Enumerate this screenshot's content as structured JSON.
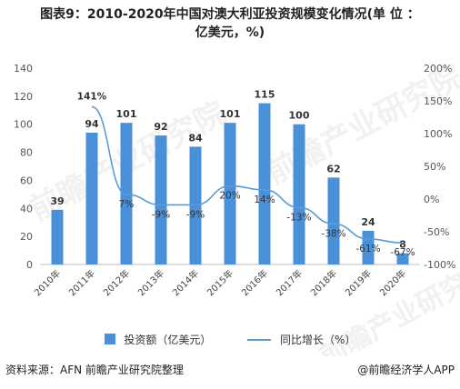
{
  "title_line1": "图表9：2010-2020年中国对澳大利亚投资规模变化情况(单 位 ：",
  "title_line2": "亿美元，%)",
  "chart_data": {
    "type": "bar",
    "categories": [
      "2010年",
      "2011年",
      "2012年",
      "2013年",
      "2014年",
      "2015年",
      "2016年",
      "2017年",
      "2018年",
      "2019年",
      "2020年"
    ],
    "series": [
      {
        "name": "投资额（亿美元）",
        "type": "bar",
        "values": [
          39,
          94,
          101,
          92,
          84,
          101,
          115,
          100,
          62,
          24,
          8
        ],
        "color": "#4a90d9"
      },
      {
        "name": "同比增长（%）",
        "type": "line",
        "values": [
          null,
          141,
          7,
          -9,
          -9,
          20,
          14,
          -13,
          -38,
          -61,
          -67
        ],
        "color": "#5b9bd5"
      }
    ],
    "value_labels": [
      "39",
      "94",
      "101",
      "92",
      "84",
      "101",
      "115",
      "100",
      "62",
      "24",
      "8"
    ],
    "pct_labels": [
      "",
      "141%",
      "7%",
      "-9%",
      "-9%",
      "20%",
      "14%",
      "-13%",
      "-38%",
      "-61%",
      "-67%"
    ],
    "y_left": {
      "ylim": [
        0,
        140
      ],
      "ticks": [
        "0",
        "20",
        "40",
        "60",
        "80",
        "100",
        "120",
        "140"
      ]
    },
    "y_right": {
      "ylim": [
        -100,
        200
      ],
      "ticks": [
        "-100%",
        "-50%",
        "0%",
        "50%",
        "100%",
        "150%",
        "200%"
      ]
    },
    "legend": {
      "position": "bottom"
    }
  },
  "source": "资料来源：AFN 前瞻产业研究院整理",
  "brand": "@前瞻经济学人APP",
  "watermark_text": "前瞻产业研究院",
  "colors": {
    "bar": "#4a90d9",
    "line": "#5b9bd5",
    "axis": "#666666"
  }
}
